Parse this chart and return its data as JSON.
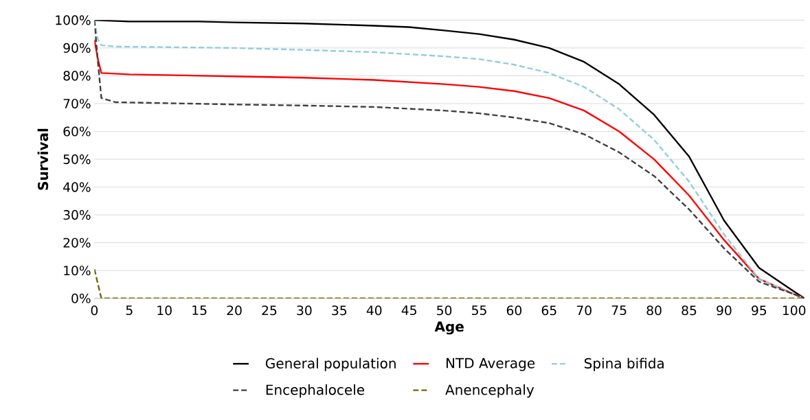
{
  "chart_data": {
    "type": "line",
    "xlabel": "Age",
    "ylabel": "Survival",
    "xlim": [
      0,
      101.5
    ],
    "ylim": [
      0,
      100
    ],
    "xticks": [
      0,
      5,
      10,
      15,
      20,
      25,
      30,
      35,
      40,
      45,
      50,
      55,
      60,
      65,
      70,
      75,
      80,
      85,
      90,
      95,
      100
    ],
    "yticks": [
      {
        "value": 0,
        "label": "0%"
      },
      {
        "value": 10,
        "label": "10%"
      },
      {
        "value": 20,
        "label": "20%"
      },
      {
        "value": 30,
        "label": "30%"
      },
      {
        "value": 40,
        "label": "40%"
      },
      {
        "value": 50,
        "label": "50%"
      },
      {
        "value": 60,
        "label": "60%"
      },
      {
        "value": 70,
        "label": "70%"
      },
      {
        "value": 80,
        "label": "80%"
      },
      {
        "value": 90,
        "label": "90%"
      },
      {
        "value": 100,
        "label": "100%"
      }
    ],
    "grid": "y",
    "legend": "bottom",
    "marker": "none",
    "series": [
      {
        "name": "General population",
        "color": "#000000",
        "line_style": "solid",
        "x": [
          0,
          5,
          15,
          20,
          30,
          40,
          45,
          50,
          55,
          60,
          65,
          70,
          75,
          80,
          85,
          90,
          95,
          100,
          101.5
        ],
        "values": [
          100,
          99.5,
          99.5,
          99.2,
          98.8,
          98,
          97.5,
          96.3,
          95,
          93,
          90,
          85,
          77,
          66,
          51,
          28,
          11,
          2.5,
          0
        ]
      },
      {
        "name": "NTD Average",
        "color": "#ff0000",
        "line_style": "solid",
        "x": [
          0,
          0.5,
          1,
          5,
          20,
          30,
          40,
          50,
          55,
          60,
          65,
          70,
          75,
          80,
          85,
          90,
          95,
          100,
          101.5
        ],
        "values": [
          93,
          86,
          81,
          80.5,
          79.8,
          79.3,
          78.5,
          77,
          76,
          74.5,
          72,
          67.5,
          60,
          50,
          37,
          21,
          7,
          1.5,
          0
        ]
      },
      {
        "name": "Spina bifida",
        "color": "#92cddc",
        "line_style": "dashed",
        "x": [
          0,
          0.5,
          1,
          3,
          20,
          30,
          40,
          50,
          55,
          60,
          65,
          70,
          75,
          80,
          85,
          90,
          95,
          100,
          101.5
        ],
        "values": [
          100,
          93,
          91,
          90.5,
          90,
          89.3,
          88.5,
          87,
          86,
          84,
          81,
          76,
          68,
          57,
          42,
          23,
          7,
          1.5,
          0
        ]
      },
      {
        "name": "Encephalocele",
        "color": "#404040",
        "line_style": "dashed",
        "x": [
          0,
          0.5,
          1,
          3,
          20,
          30,
          40,
          50,
          55,
          60,
          65,
          70,
          75,
          80,
          85,
          90,
          95,
          100,
          101.5
        ],
        "values": [
          100,
          85,
          72,
          70.5,
          69.7,
          69.3,
          68.8,
          67.5,
          66.5,
          65,
          63,
          59,
          52.5,
          44,
          32,
          18,
          6,
          1.5,
          0
        ]
      },
      {
        "name": "Anencephaly",
        "color": "#7f6000",
        "line_style": "dashed",
        "x": [
          0,
          1,
          101.5
        ],
        "values": [
          10.5,
          0,
          0
        ]
      }
    ]
  }
}
